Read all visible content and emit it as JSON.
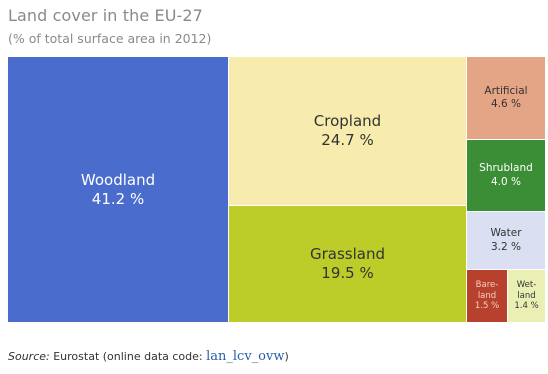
{
  "title": "Land cover in the EU-27",
  "subtitle": "(% of total surface area in 2012)",
  "source": {
    "label": "Source:",
    "text": " Eurostat (online data code: ",
    "code": "lan_lcv_ovw",
    "close": ")"
  },
  "chart_data": {
    "type": "treemap",
    "title": "Land cover in the EU-27",
    "subtitle": "(% of total surface area in 2012)",
    "items": [
      {
        "name": "Woodland",
        "value": 41.2,
        "label": "41.2 %",
        "color": "#4a6ccd",
        "text_color": "#ffffff"
      },
      {
        "name": "Cropland",
        "value": 24.7,
        "label": "24.7 %",
        "color": "#f7ecad",
        "text_color": "#333333"
      },
      {
        "name": "Grassland",
        "value": 19.5,
        "label": "19.5 %",
        "color": "#bccd2a",
        "text_color": "#333333"
      },
      {
        "name": "Artificial",
        "value": 4.6,
        "label": "4.6 %",
        "color": "#e4a486",
        "text_color": "#333333"
      },
      {
        "name": "Shrubland",
        "value": 4.0,
        "label": "4.0 %",
        "color": "#3c8e36",
        "text_color": "#ffffff"
      },
      {
        "name": "Water",
        "value": 3.2,
        "label": "3.2 %",
        "color": "#dadff2",
        "text_color": "#333333"
      },
      {
        "name": "Bare-\nland",
        "value": 1.5,
        "label": "1.5 %",
        "color": "#b8412d",
        "text_color": "#f2d0c0"
      },
      {
        "name": "Wet-\nland",
        "value": 1.4,
        "label": "1.4 %",
        "color": "#eaf0b4",
        "text_color": "#333333"
      }
    ]
  }
}
